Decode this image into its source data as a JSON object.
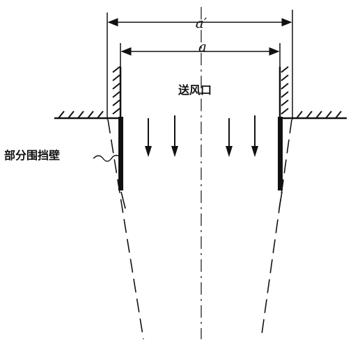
{
  "labels": {
    "dim_outer": "a′",
    "dim_inner": "a",
    "outlet": "送风口",
    "partial_wall": "部分围挡壁"
  },
  "colors": {
    "ink": "#111111",
    "background": "#ffffff"
  }
}
